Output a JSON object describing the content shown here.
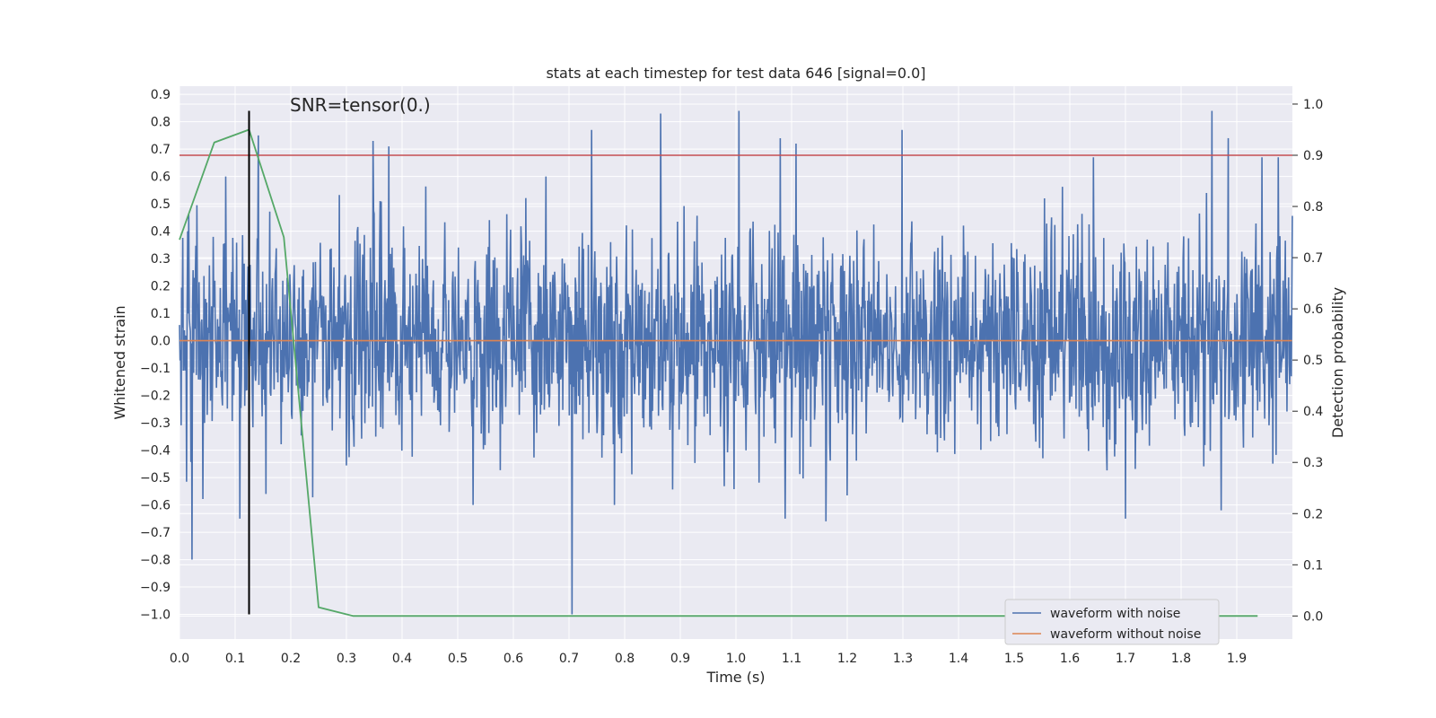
{
  "chart_data": {
    "type": "line",
    "title": "stats at each timestep for test data 646 [signal=0.0]",
    "xlabel": "Time (s)",
    "ylabel": "Whitened strain",
    "y2label": "Detection probability",
    "xlim": [
      0.0,
      2.0
    ],
    "ylim": [
      -1.09,
      0.93
    ],
    "y2lim": [
      -0.045,
      1.035
    ],
    "x_ticks": [
      0.0,
      0.1,
      0.2,
      0.3,
      0.4,
      0.5,
      0.6,
      0.7,
      0.8,
      0.9,
      1.0,
      1.1,
      1.2,
      1.3,
      1.4,
      1.5,
      1.6,
      1.7,
      1.8,
      1.9
    ],
    "x_tick_labels": [
      "0.0",
      "0.1",
      "0.2",
      "0.3",
      "0.4",
      "0.5",
      "0.6",
      "0.7",
      "0.8",
      "0.9",
      "1.0",
      "1.1",
      "1.2",
      "1.3",
      "1.4",
      "1.5",
      "1.6",
      "1.7",
      "1.8",
      "1.9"
    ],
    "y_ticks": [
      0.9,
      0.8,
      0.7,
      0.6,
      0.5,
      0.4,
      0.3,
      0.2,
      0.1,
      0.0,
      -0.1,
      -0.2,
      -0.3,
      -0.4,
      -0.5,
      -0.6,
      -0.7,
      -0.8,
      -0.9,
      -1.0
    ],
    "y_tick_labels": [
      "0.9",
      "0.8",
      "0.7",
      "0.6",
      "0.5",
      "0.4",
      "0.3",
      "0.2",
      "0.1",
      "0.0",
      "−0.1",
      "−0.2",
      "−0.3",
      "−0.4",
      "−0.5",
      "−0.6",
      "−0.7",
      "−0.8",
      "−0.9",
      "−1.0"
    ],
    "y2_ticks": [
      1.0,
      0.9,
      0.8,
      0.7,
      0.6,
      0.5,
      0.4,
      0.3,
      0.2,
      0.1,
      0.0
    ],
    "y2_tick_labels": [
      "1.0",
      "0.9",
      "0.8",
      "0.7",
      "0.6",
      "0.5",
      "0.4",
      "0.3",
      "0.2",
      "0.1",
      "0.0"
    ],
    "annotation": "SNR=tensor(0.)",
    "grid": true,
    "legend_position": "lower-right",
    "series": [
      {
        "name": "waveform with noise",
        "color": "#4c72b0",
        "axis": "left",
        "style": "dense-noise",
        "x_range": [
          0.0,
          2.0
        ],
        "samples": 2048,
        "random_seed": 646,
        "typical_amplitude": 0.2,
        "peaks": [
          {
            "x": 0.015,
            "y": 0.4
          },
          {
            "x": 0.022,
            "y": -0.8
          },
          {
            "x": 0.083,
            "y": 0.6
          },
          {
            "x": 0.108,
            "y": -0.65
          },
          {
            "x": 0.142,
            "y": 0.75
          },
          {
            "x": 0.155,
            "y": -0.56
          },
          {
            "x": 0.348,
            "y": 0.73
          },
          {
            "x": 0.376,
            "y": 0.71
          },
          {
            "x": 0.705,
            "y": -1.0
          },
          {
            "x": 0.741,
            "y": 0.77
          },
          {
            "x": 0.865,
            "y": 0.83
          },
          {
            "x": 1.005,
            "y": 0.84
          },
          {
            "x": 1.08,
            "y": 0.74
          },
          {
            "x": 1.088,
            "y": -0.65
          },
          {
            "x": 1.108,
            "y": 0.72
          },
          {
            "x": 1.162,
            "y": -0.66
          },
          {
            "x": 1.298,
            "y": 0.77
          },
          {
            "x": 1.642,
            "y": 0.67
          },
          {
            "x": 1.7,
            "y": -0.65
          },
          {
            "x": 1.855,
            "y": 0.84
          },
          {
            "x": 1.872,
            "y": -0.62
          },
          {
            "x": 1.885,
            "y": 0.74
          },
          {
            "x": 1.945,
            "y": 0.67
          },
          {
            "x": 1.975,
            "y": 0.67
          }
        ]
      },
      {
        "name": "waveform without noise",
        "color": "#dd8452",
        "axis": "left",
        "x": [
          0.0,
          2.0
        ],
        "y": [
          0.0,
          0.0
        ]
      },
      {
        "name": "",
        "color": "#55a868",
        "axis": "right",
        "x": [
          0.0,
          0.0625,
          0.125,
          0.1875,
          0.25,
          0.3125,
          1.9375
        ],
        "y": [
          0.735,
          0.925,
          0.95,
          0.74,
          0.017,
          0.0,
          0.0
        ]
      }
    ],
    "threshold": {
      "axis": "right",
      "y": 0.9,
      "color": "#c44e52"
    },
    "marker_line": {
      "x": 0.125,
      "y_from": -1.0,
      "y_to": 0.84,
      "color": "#000000"
    }
  }
}
